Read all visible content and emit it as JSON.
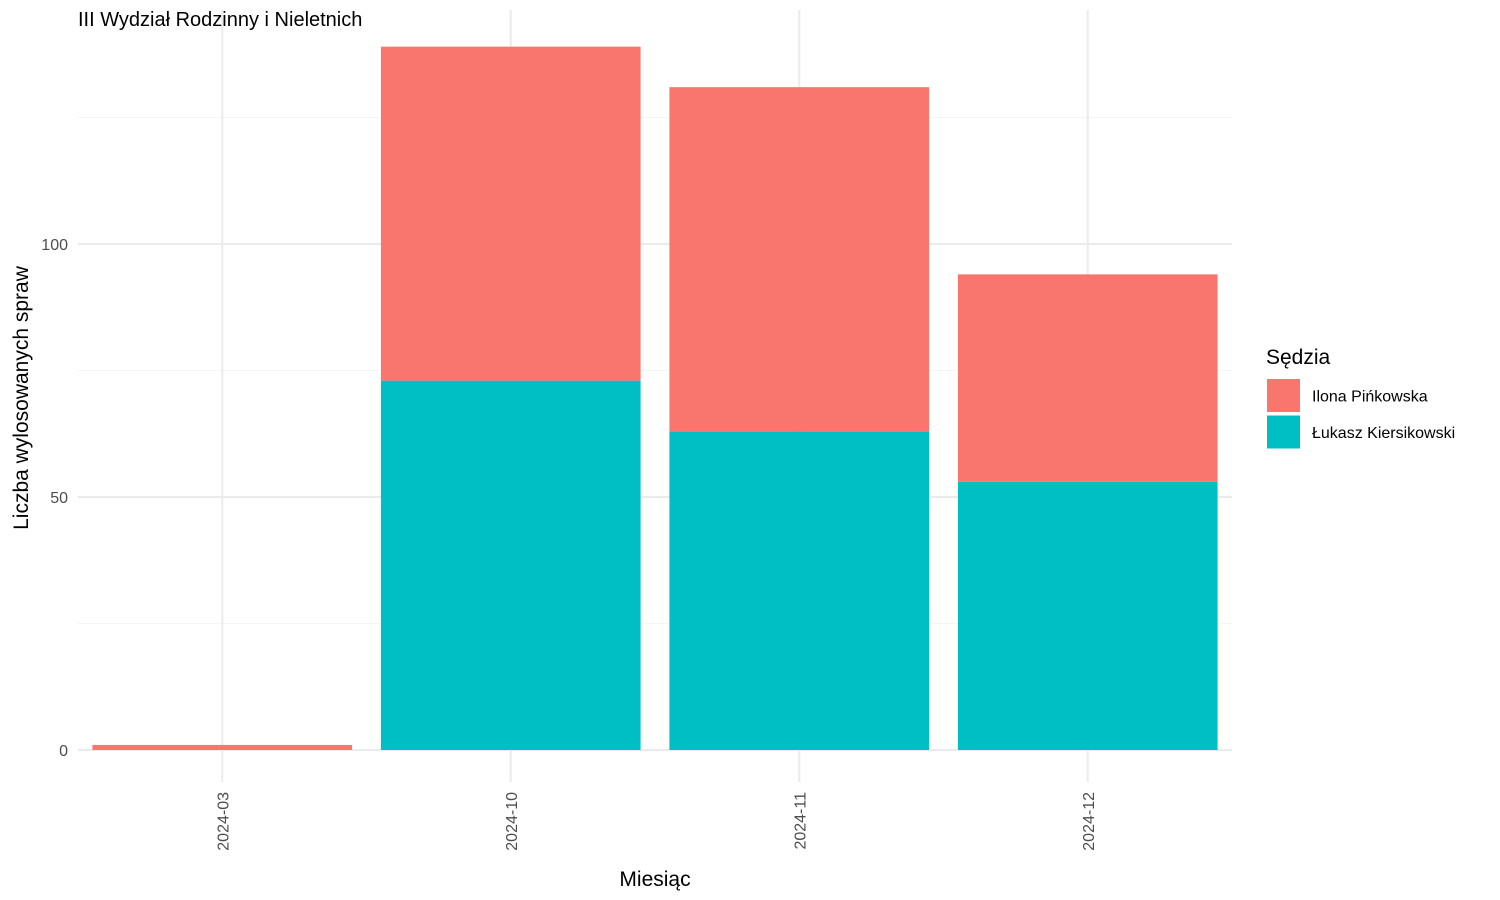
{
  "chart_data": {
    "type": "bar",
    "stacked": true,
    "title": "III Wydział Rodzinny i Nieletnich",
    "xlabel": "Miesiąc",
    "ylabel": "Liczba wylosowanych spraw",
    "categories": [
      "2024-03",
      "2024-10",
      "2024-11",
      "2024-12"
    ],
    "series": [
      {
        "name": "Łukasz Kiersikowski",
        "values": [
          0,
          73,
          63,
          53
        ],
        "color": "#00BFC4"
      },
      {
        "name": "Ilona Pińkowska",
        "values": [
          1,
          66,
          68,
          41
        ],
        "color": "#F8766D"
      }
    ],
    "legend": {
      "title": "Sędzia",
      "entries": [
        "Ilona Pińkowska",
        "Łukasz Kiersikowski"
      ],
      "colors": [
        "#F8766D",
        "#00BFC4"
      ],
      "position": "right"
    },
    "yticks": [
      0,
      50,
      100
    ],
    "ylim": [
      -6,
      146
    ],
    "grid": true,
    "x_tick_rotation": "vertical"
  }
}
